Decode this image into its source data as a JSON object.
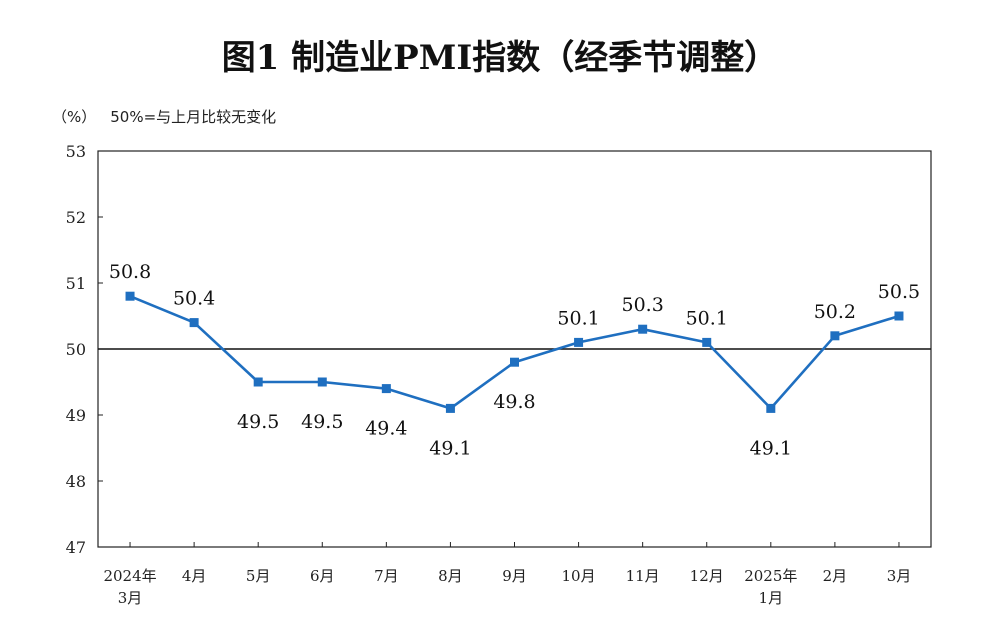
{
  "chart_data": {
    "type": "line",
    "title": "图1  制造业PMI指数（经季节调整）",
    "unit_label": "（%）",
    "reference_note": "50%=与上月比较无变化",
    "reference_value": 50,
    "ylim": [
      47,
      53
    ],
    "yticks": [
      "53",
      "52",
      "51",
      "50",
      "49",
      "48",
      "47"
    ],
    "ytick_values": [
      53,
      52,
      51,
      50,
      49,
      48,
      47
    ],
    "categories": [
      [
        "2024年",
        "3月"
      ],
      [
        "4月"
      ],
      [
        "5月"
      ],
      [
        "6月"
      ],
      [
        "7月"
      ],
      [
        "8月"
      ],
      [
        "9月"
      ],
      [
        "10月"
      ],
      [
        "11月"
      ],
      [
        "12月"
      ],
      [
        "2025年",
        "1月"
      ],
      [
        "2月"
      ],
      [
        "3月"
      ]
    ],
    "series": [
      {
        "values": [
          50.8,
          50.4,
          49.5,
          49.5,
          49.4,
          49.1,
          49.8,
          50.1,
          50.3,
          50.1,
          49.1,
          50.2,
          50.5
        ],
        "labels": [
          "50.8",
          "50.4",
          "49.5",
          "49.5",
          "49.4",
          "49.1",
          "49.8",
          "50.1",
          "50.3",
          "50.1",
          "49.1",
          "50.2",
          "50.5"
        ],
        "color": "#1f6fc0"
      }
    ],
    "grid": false
  }
}
